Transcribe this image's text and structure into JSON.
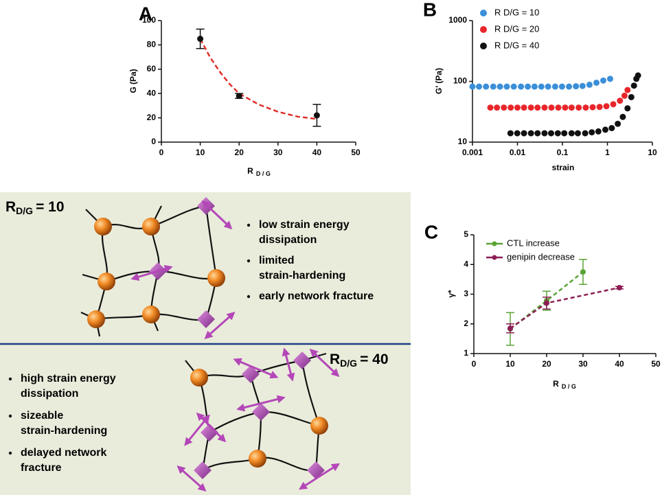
{
  "chart_data": [
    {
      "type": "scatter",
      "panel_label": "A",
      "y_label": "G (Pa)",
      "x_label": "R",
      "x_label_sub": "D / G",
      "x": [
        10,
        20,
        40
      ],
      "values": [
        85,
        38,
        22
      ],
      "errors": [
        8,
        2,
        9
      ],
      "color": "#111111",
      "fit": {
        "x": [
          10,
          12.5,
          15,
          17.5,
          20,
          25,
          30,
          35,
          40
        ],
        "y": [
          85,
          70,
          58,
          48,
          40,
          31,
          25,
          21,
          19
        ],
        "color": "#e0302a",
        "dashed": true
      },
      "xlim": [
        0,
        50
      ],
      "xticks": [
        0,
        10,
        20,
        30,
        40,
        50
      ],
      "ylim": [
        0,
        100
      ],
      "yticks": [
        0,
        20,
        40,
        60,
        80,
        100
      ]
    },
    {
      "type": "scatter",
      "panel_label": "B",
      "y_label": "G' (Pa)",
      "x_label": "strain",
      "log_x": true,
      "log_y": true,
      "xlim": [
        0.001,
        10
      ],
      "xticks": [
        0.001,
        0.01,
        0.1,
        1,
        10
      ],
      "ylim": [
        10,
        1000
      ],
      "yticks": [
        10,
        100,
        1000
      ],
      "series": [
        {
          "name": "R D/G = 10",
          "color": "#3b8fd9",
          "x": [
            0.001,
            0.0014,
            0.002,
            0.0029,
            0.0041,
            0.0058,
            0.0083,
            0.012,
            0.017,
            0.024,
            0.034,
            0.048,
            0.069,
            0.098,
            0.14,
            0.2,
            0.28,
            0.4,
            0.57,
            0.81,
            1.15
          ],
          "values": [
            82,
            82,
            82,
            82,
            82,
            82,
            82,
            82,
            82,
            82,
            82,
            82,
            82,
            82,
            82,
            83,
            84,
            88,
            95,
            103,
            110
          ]
        },
        {
          "name": "R D/G = 20",
          "color": "#e8262a",
          "x": [
            0.0025,
            0.0035,
            0.005,
            0.0071,
            0.01,
            0.014,
            0.02,
            0.028,
            0.04,
            0.057,
            0.081,
            0.115,
            0.16,
            0.23,
            0.33,
            0.47,
            0.67,
            0.95,
            1.35,
            1.9,
            2.4,
            2.8
          ],
          "values": [
            37,
            37,
            37,
            37,
            37,
            37,
            37,
            37,
            37,
            37,
            37,
            37,
            37,
            37,
            37,
            37.5,
            38,
            39,
            42,
            48,
            58,
            72
          ]
        },
        {
          "name": "R D/G = 40",
          "color": "#111111",
          "x": [
            0.007,
            0.0099,
            0.014,
            0.02,
            0.028,
            0.04,
            0.056,
            0.079,
            0.11,
            0.16,
            0.22,
            0.32,
            0.45,
            0.63,
            0.9,
            1.25,
            1.7,
            2.2,
            2.8,
            3.4,
            3.9,
            4.4,
            4.8
          ],
          "values": [
            14,
            14,
            14,
            14,
            14,
            14,
            14,
            14,
            14,
            14,
            14,
            14,
            14.5,
            15,
            16,
            17,
            20,
            26,
            36,
            55,
            85,
            110,
            125
          ]
        }
      ]
    },
    {
      "type": "line",
      "panel_label": "C",
      "y_label": "γ*",
      "x_label": "R",
      "x_label_sub": "D / G",
      "xlim": [
        0,
        50
      ],
      "xticks": [
        0,
        10,
        20,
        30,
        40,
        50
      ],
      "ylim": [
        1,
        5
      ],
      "yticks": [
        1,
        2,
        3,
        4,
        5
      ],
      "dashed": true,
      "series": [
        {
          "name": "CTL increase",
          "color": "#5aa336",
          "x": [
            10,
            20,
            30
          ],
          "values": [
            1.83,
            2.78,
            3.75
          ],
          "errors": [
            0.55,
            0.32,
            0.42
          ]
        },
        {
          "name": "genipin decrease",
          "color": "#8c1d54",
          "x": [
            10,
            20,
            40
          ],
          "values": [
            1.85,
            2.7,
            3.22
          ],
          "errors": [
            0.15,
            0.2,
            0.04
          ]
        }
      ]
    }
  ],
  "panels": [
    {
      "heading": "R",
      "heading_sub": "D/G",
      "heading_value": "= 10",
      "bullets": [
        [
          "low strain energy",
          "dissipation"
        ],
        [
          "limited",
          "strain-hardening"
        ],
        [
          "early network fracture"
        ]
      ]
    },
    {
      "heading": "R",
      "heading_sub": "D/G",
      "heading_value": "= 40",
      "bullets": [
        [
          "high strain energy",
          "dissipation"
        ],
        [
          "sizeable",
          "strain-hardening"
        ],
        [
          "delayed network",
          "fracture"
        ]
      ]
    }
  ]
}
